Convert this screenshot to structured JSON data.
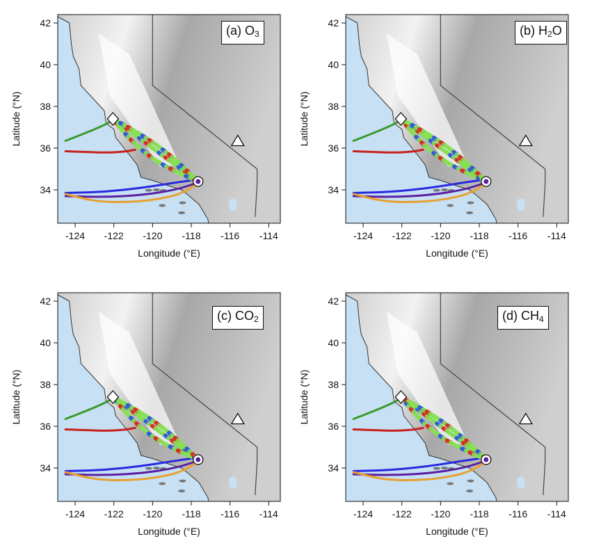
{
  "colors": {
    "ocean": "#c7e0f4",
    "land_light": "#f2f2f2",
    "land_mid": "#cfcfcf",
    "land_dark": "#a8a8a8",
    "border": "#444444",
    "track_high": "#d82020",
    "track_mid": "#88e055",
    "track_low": "#2850e0",
    "traj_green": "#3a9a2c",
    "traj_red": "#c8201c",
    "traj_blue": "#2828e0",
    "traj_purple": "#5a1fa0",
    "traj_orange": "#e8a030"
  },
  "icons": [
    "diamond-marker-icon",
    "circle-marker-icon",
    "triangle-marker-icon"
  ],
  "axes": {
    "xlabel": "Longitude (°E)",
    "ylabel": "Latitude (°N)",
    "xlim": [
      -124.9,
      -113.4
    ],
    "ylim": [
      32.4,
      42.4
    ],
    "xticks": [
      "-124",
      "-122",
      "-120",
      "-118",
      "-116",
      "-114"
    ],
    "yticks": [
      "34",
      "36",
      "38",
      "40",
      "42"
    ]
  },
  "panels": [
    {
      "label": "(a) O",
      "sub": "3"
    },
    {
      "label": "(b) H",
      "sub": "2",
      "suffix": "O"
    },
    {
      "label": "(c) CO",
      "sub": "2"
    },
    {
      "label": "(d) CH",
      "sub": "4"
    }
  ],
  "markers": {
    "diamond": {
      "lon": -122.05,
      "lat": 37.4
    },
    "circle": {
      "lon": -117.65,
      "lat": 34.4
    },
    "triangle": {
      "lon": -115.6,
      "lat": 36.35
    }
  },
  "trajectories": [
    {
      "color": "traj_green",
      "lon": [
        -124.5,
        -123.8,
        -123,
        -122.4,
        -122.05
      ],
      "lat": [
        36.35,
        36.6,
        36.9,
        37.15,
        37.35
      ]
    },
    {
      "color": "traj_red",
      "lon": [
        -124.5,
        -123.5,
        -122.5,
        -121.5,
        -120.9
      ],
      "lat": [
        35.85,
        35.82,
        35.78,
        35.82,
        35.92
      ]
    },
    {
      "color": "traj_blue",
      "lon": [
        -124.5,
        -122.5,
        -120.5,
        -118.8,
        -117.65
      ],
      "lat": [
        33.85,
        33.9,
        34.1,
        34.35,
        34.5
      ]
    },
    {
      "color": "traj_purple",
      "lon": [
        -124.5,
        -122.5,
        -120.5,
        -118.8,
        -117.65
      ],
      "lat": [
        33.7,
        33.65,
        33.75,
        34.0,
        34.35
      ]
    },
    {
      "color": "traj_orange",
      "lon": [
        -124.5,
        -123.0,
        -121.5,
        -120.0,
        -118.5,
        -117.7
      ],
      "lat": [
        33.8,
        33.45,
        33.4,
        33.5,
        33.8,
        34.3
      ]
    }
  ]
}
